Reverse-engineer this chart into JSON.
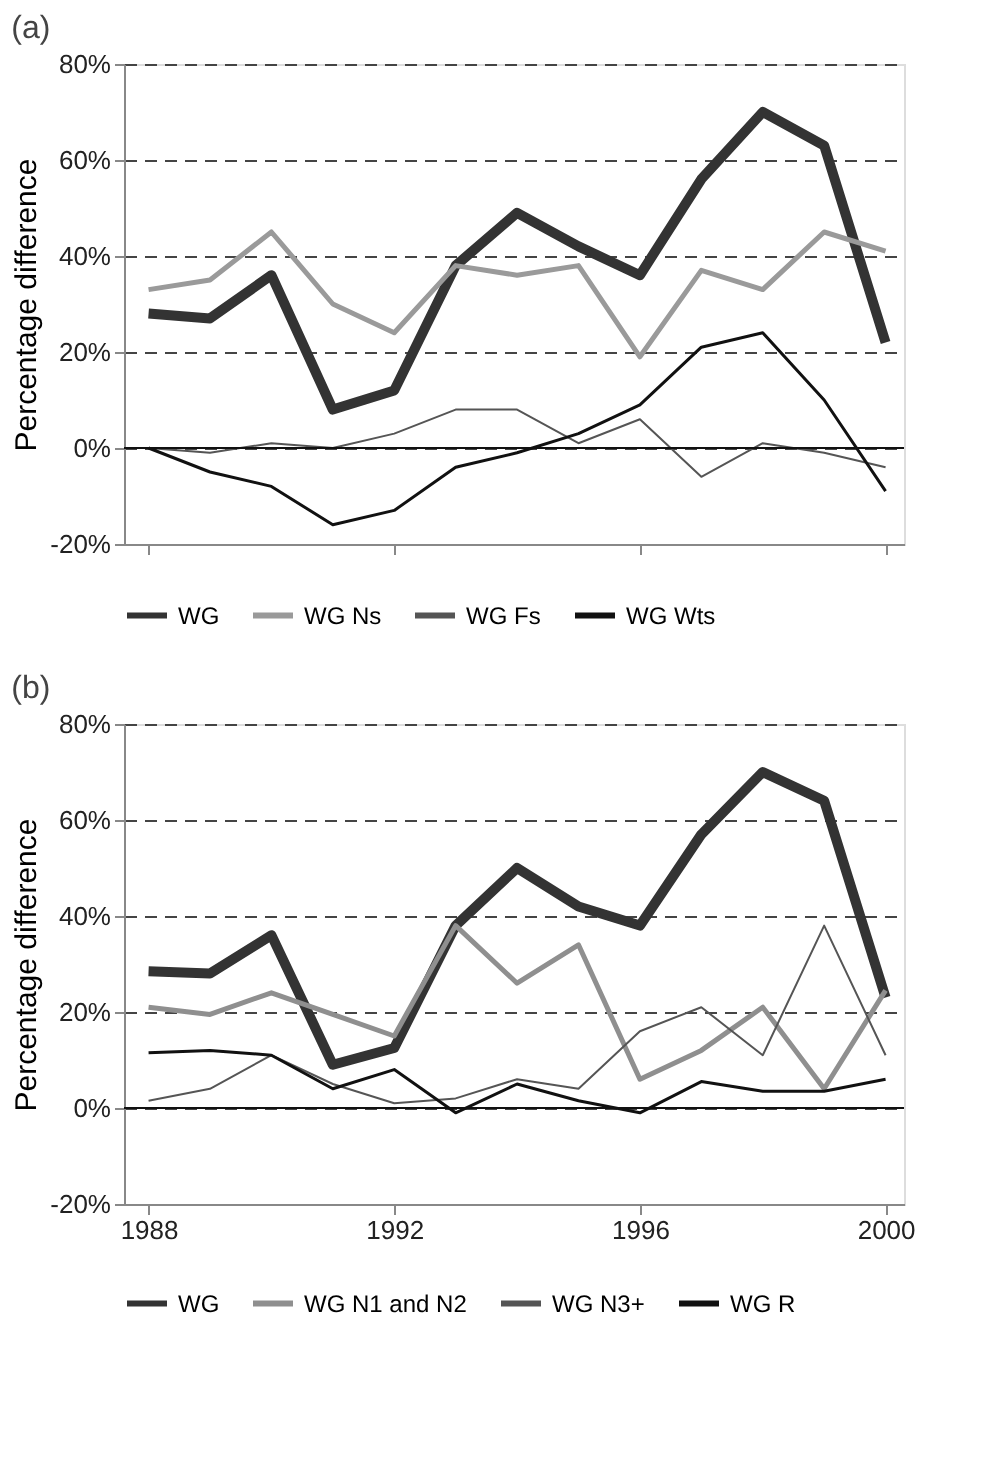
{
  "chart_data": [
    {
      "type": "line",
      "title": "(a)",
      "ylabel": "Percentage difference",
      "x": [
        1988,
        1989,
        1990,
        1991,
        1992,
        1993,
        1994,
        1995,
        1996,
        1997,
        1998,
        1999,
        2000
      ],
      "xlim": [
        1987.6,
        2000.3
      ],
      "xticks": [
        1988,
        1992,
        1996,
        2000
      ],
      "ylim": [
        -20,
        80
      ],
      "yticks": [
        {
          "value": -20,
          "label": "-20%"
        },
        {
          "value": 0,
          "label": "0%"
        },
        {
          "value": 20,
          "label": "20%"
        },
        {
          "value": 40,
          "label": "40%"
        },
        {
          "value": 60,
          "label": "60%"
        },
        {
          "value": 80,
          "label": "80%"
        }
      ],
      "tick_labels": "y",
      "grid": "y",
      "legend": "bottom",
      "line_style": "solid",
      "marker": "none",
      "ref_lines": [
        {
          "axis": "y",
          "value": 0
        }
      ],
      "series": [
        {
          "name": "WG",
          "color": "#333333",
          "values": [
            28,
            27,
            36,
            8,
            12,
            38,
            49,
            42,
            36,
            56,
            70,
            63,
            22
          ]
        },
        {
          "name": "WG Ns",
          "color": "#9a9a9a",
          "values": [
            33,
            35,
            45,
            30,
            24,
            38,
            36,
            38,
            19,
            37,
            33,
            45,
            41
          ]
        },
        {
          "name": "WG Fs",
          "color": "#555555",
          "values": [
            0,
            -1,
            1,
            0,
            3,
            8,
            8,
            1,
            6,
            -6,
            1,
            -1,
            -4
          ]
        },
        {
          "name": "WG Wts",
          "color": "#111111",
          "values": [
            0,
            -5,
            -8,
            -16,
            -13,
            -4,
            -1,
            3,
            9,
            21,
            24,
            10,
            -9
          ]
        }
      ]
    },
    {
      "type": "line",
      "title": "(b)",
      "ylabel": "Percentage difference",
      "x": [
        1988,
        1989,
        1990,
        1991,
        1992,
        1993,
        1994,
        1995,
        1996,
        1997,
        1998,
        1999,
        2000
      ],
      "xlim": [
        1987.6,
        2000.3
      ],
      "xticks": [
        1988,
        1992,
        1996,
        2000
      ],
      "ylim": [
        -20,
        80
      ],
      "yticks": [
        {
          "value": -20,
          "label": "-20%"
        },
        {
          "value": 0,
          "label": "0%"
        },
        {
          "value": 20,
          "label": "20%"
        },
        {
          "value": 40,
          "label": "40%"
        },
        {
          "value": 60,
          "label": "60%"
        },
        {
          "value": 80,
          "label": "80%"
        }
      ],
      "grid": "y",
      "legend": "bottom",
      "line_style": "solid",
      "marker": "none",
      "ref_lines": [
        {
          "axis": "y",
          "value": 0
        }
      ],
      "series": [
        {
          "name": "WG",
          "color": "#333333",
          "values": [
            28.5,
            28,
            36,
            9,
            12.5,
            38,
            50,
            42,
            38,
            57,
            70,
            64,
            23
          ]
        },
        {
          "name": "WG N1 and N2",
          "color": "#8f8f8f",
          "values": [
            21,
            19.5,
            24,
            19.5,
            15,
            38,
            26,
            34,
            6,
            12,
            21,
            4,
            24.5
          ]
        },
        {
          "name": "WG N3+",
          "color": "#555555",
          "values": [
            1.5,
            4,
            11,
            5,
            1,
            2,
            6,
            4,
            16,
            21,
            11,
            38,
            11
          ]
        },
        {
          "name": "WG R",
          "color": "#111111",
          "values": [
            11.5,
            12,
            11,
            4,
            8,
            -1,
            5,
            1.5,
            -1,
            5.5,
            3.5,
            3.5,
            6
          ]
        }
      ]
    }
  ]
}
